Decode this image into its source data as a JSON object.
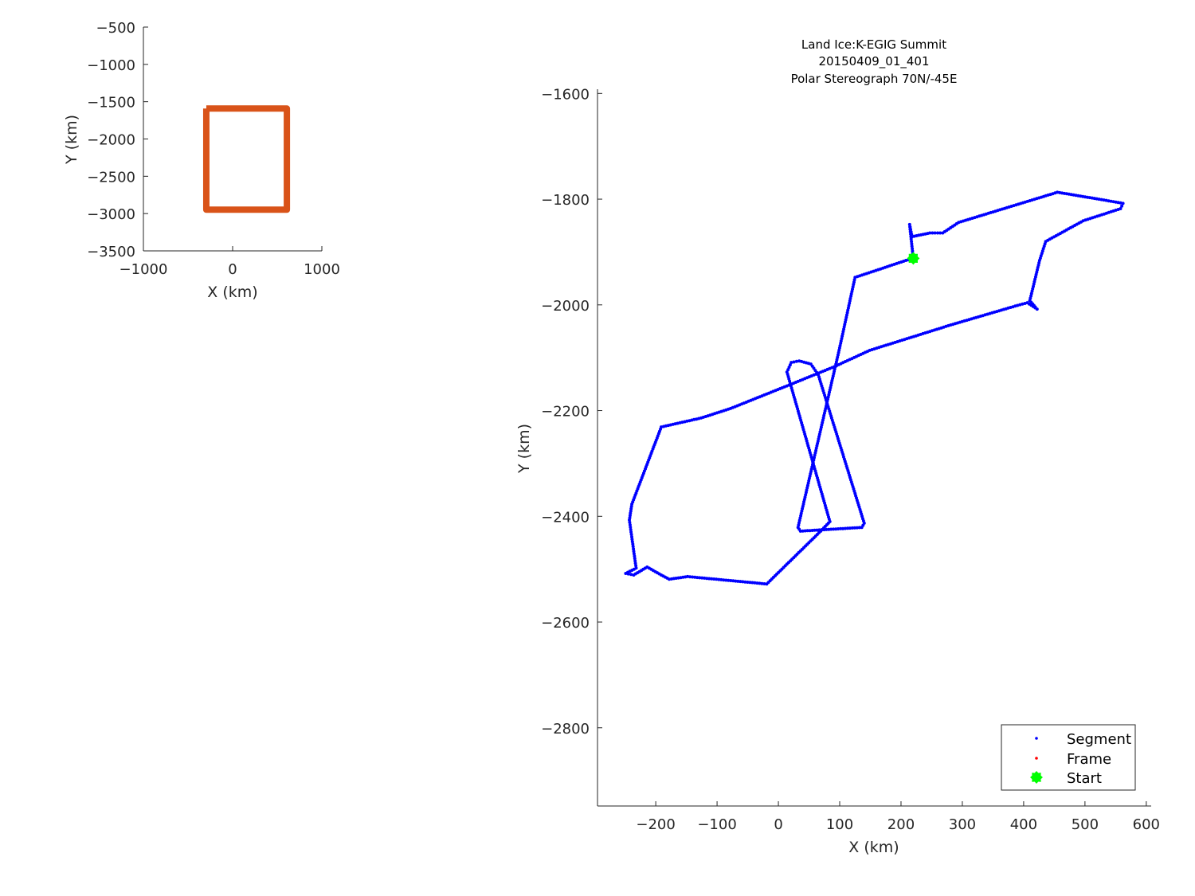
{
  "chart_data": [
    {
      "type": "line",
      "name_hint": "overview",
      "xlabel": "X (km)",
      "ylabel": "Y (km)",
      "xlim": [
        -1000,
        1000
      ],
      "ylim": [
        -3500,
        -500
      ],
      "xticks": [
        -1000,
        0,
        1000
      ],
      "xtick_labels": [
        "−1000",
        "0",
        "1000"
      ],
      "yticks": [
        -500,
        -1000,
        -1500,
        -2000,
        -2500,
        -3000,
        -3500
      ],
      "ytick_labels": [
        "−500",
        "−1000",
        "−1500",
        "−2000",
        "−2500",
        "−3000",
        "−3500"
      ],
      "grid": false,
      "series": [
        {
          "color": "#D95319",
          "x": [
            -295,
            608,
            608,
            -295,
            -295
          ],
          "y": [
            -1592,
            -1592,
            -2948,
            -2948,
            -1592
          ]
        }
      ]
    },
    {
      "type": "scatter",
      "title": [
        "Land Ice:K-EGIG Summit",
        "20150409_01_401",
        "Polar Stereograph 70N/-45E"
      ],
      "xlabel": "X (km)",
      "ylabel": "Y (km)",
      "xlim": [
        -295,
        608
      ],
      "ylim": [
        -2948,
        -1592
      ],
      "xticks": [
        -200,
        -100,
        0,
        100,
        200,
        300,
        400,
        500,
        600
      ],
      "xtick_labels": [
        "−200",
        "−100",
        "0",
        "100",
        "200",
        "300",
        "400",
        "500",
        "600"
      ],
      "yticks": [
        -1600,
        -1800,
        -2000,
        -2200,
        -2400,
        -2600,
        -2800
      ],
      "ytick_labels": [
        "−1600",
        "−1800",
        "−2000",
        "−2200",
        "−2400",
        "−2600",
        "−2800"
      ],
      "grid": false,
      "legend": {
        "placement": "bottom-right",
        "entries": [
          {
            "label": "Segment",
            "color": "#0000FF",
            "marker": "dot"
          },
          {
            "label": "Frame",
            "color": "#FF0000",
            "marker": "dot"
          },
          {
            "label": "Start",
            "color": "#00FF00",
            "marker": "star"
          }
        ]
      },
      "series": [
        {
          "name": "Segment",
          "color": "#0000FF",
          "x": [
            220,
            214,
            218,
            247,
            268,
            294,
            455,
            523,
            562,
            558,
            497,
            436,
            426,
            410,
            419,
            422,
            406,
            390,
            281,
            149,
            91,
            21,
            -78,
            -126,
            -191,
            -239,
            -243,
            -232,
            -249,
            -236,
            -214,
            -191,
            -178,
            -148,
            -19,
            69,
            84,
            14,
            21,
            34,
            53,
            65,
            140,
            136,
            36,
            32,
            99,
            125,
            208,
            220
          ],
          "y": [
            -1912,
            -1848,
            -1871,
            -1864,
            -1864,
            -1844,
            -1787,
            -1800,
            -1808,
            -1818,
            -1841,
            -1880,
            -1916,
            -1992,
            -2004,
            -2008,
            -1996,
            -2001,
            -2038,
            -2086,
            -2117,
            -2150,
            -2196,
            -2214,
            -2231,
            -2377,
            -2407,
            -2498,
            -2508,
            -2511,
            -2496,
            -2511,
            -2519,
            -2514,
            -2528,
            -2428,
            -2410,
            -2127,
            -2109,
            -2106,
            -2112,
            -2132,
            -2413,
            -2421,
            -2428,
            -2421,
            -2086,
            -1948,
            -1916,
            -1912
          ]
        },
        {
          "name": "Start",
          "color": "#00FF00",
          "x": [
            220
          ],
          "y": [
            -1912
          ]
        }
      ]
    }
  ]
}
